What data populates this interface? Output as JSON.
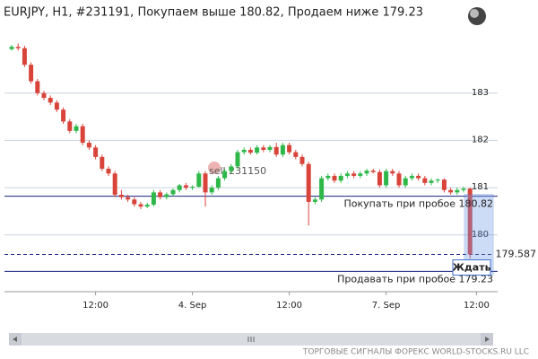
{
  "chart_data": {
    "type": "candlestick",
    "title": "EURJPY, H1, #231191, Покупаем выше 180.82, Продаем ниже 179.23",
    "categories": [
      null,
      null,
      null,
      null,
      null,
      null,
      null,
      null,
      null,
      null,
      null,
      null,
      null,
      "12:00",
      null,
      null,
      null,
      null,
      null,
      null,
      null,
      null,
      null,
      null,
      null,
      null,
      null,
      null,
      "4. Sep",
      null,
      null,
      null,
      null,
      null,
      null,
      null,
      null,
      null,
      null,
      null,
      null,
      null,
      null,
      "12:00",
      null,
      null,
      null,
      null,
      null,
      null,
      null,
      null,
      null,
      null,
      null,
      null,
      null,
      null,
      "7. Sep",
      null,
      null,
      null,
      null,
      null,
      null,
      null,
      null,
      null,
      null,
      null,
      null,
      null,
      "12:00"
    ],
    "ohlc": [
      [
        183.93,
        184.02,
        183.9,
        183.98
      ],
      [
        183.98,
        184.05,
        183.9,
        183.95
      ],
      [
        183.95,
        184.0,
        183.55,
        183.6
      ],
      [
        183.6,
        183.65,
        183.2,
        183.25
      ],
      [
        183.25,
        183.3,
        182.95,
        183.0
      ],
      [
        183.0,
        183.05,
        182.85,
        182.9
      ],
      [
        182.9,
        182.95,
        182.75,
        182.8
      ],
      [
        182.8,
        182.85,
        182.6,
        182.65
      ],
      [
        182.65,
        182.7,
        182.35,
        182.4
      ],
      [
        182.4,
        182.45,
        182.15,
        182.2
      ],
      [
        182.2,
        182.35,
        182.15,
        182.3
      ],
      [
        182.3,
        182.35,
        181.9,
        181.95
      ],
      [
        181.95,
        182.0,
        181.8,
        181.85
      ],
      [
        181.85,
        181.9,
        181.6,
        181.65
      ],
      [
        181.65,
        181.7,
        181.35,
        181.4
      ],
      [
        181.4,
        181.45,
        181.25,
        181.3
      ],
      [
        181.3,
        181.35,
        180.8,
        180.85
      ],
      [
        180.85,
        180.95,
        180.75,
        180.8
      ],
      [
        180.8,
        180.85,
        180.7,
        180.75
      ],
      [
        180.75,
        180.8,
        180.6,
        180.65
      ],
      [
        180.65,
        180.7,
        180.55,
        180.6
      ],
      [
        180.6,
        180.68,
        180.57,
        180.64
      ],
      [
        180.64,
        180.95,
        180.6,
        180.9
      ],
      [
        180.9,
        180.95,
        180.75,
        180.8
      ],
      [
        180.8,
        180.9,
        180.75,
        180.86
      ],
      [
        180.86,
        180.98,
        180.82,
        180.95
      ],
      [
        180.95,
        181.08,
        180.9,
        181.05
      ],
      [
        181.05,
        181.1,
        180.95,
        181.0
      ],
      [
        181.0,
        181.05,
        180.95,
        181.02
      ],
      [
        181.02,
        181.35,
        181.0,
        181.3
      ],
      [
        181.3,
        181.35,
        180.6,
        180.9
      ],
      [
        180.9,
        181.05,
        180.85,
        181.0
      ],
      [
        181.0,
        181.25,
        180.95,
        181.2
      ],
      [
        181.2,
        181.4,
        181.15,
        181.35
      ],
      [
        181.35,
        181.5,
        181.3,
        181.45
      ],
      [
        181.45,
        181.8,
        181.4,
        181.75
      ],
      [
        181.75,
        181.85,
        181.7,
        181.8
      ],
      [
        181.8,
        181.85,
        181.7,
        181.74
      ],
      [
        181.74,
        181.9,
        181.7,
        181.85
      ],
      [
        181.85,
        181.9,
        181.75,
        181.8
      ],
      [
        181.8,
        181.9,
        181.75,
        181.86
      ],
      [
        181.86,
        181.95,
        181.65,
        181.7
      ],
      [
        181.7,
        181.95,
        181.65,
        181.9
      ],
      [
        181.9,
        181.95,
        181.7,
        181.75
      ],
      [
        181.75,
        181.8,
        181.6,
        181.65
      ],
      [
        181.65,
        181.7,
        181.45,
        181.5
      ],
      [
        181.5,
        181.55,
        180.2,
        180.7
      ],
      [
        180.7,
        180.8,
        180.65,
        180.75
      ],
      [
        180.75,
        181.25,
        180.7,
        181.2
      ],
      [
        181.2,
        181.3,
        181.15,
        181.25
      ],
      [
        181.25,
        181.3,
        181.1,
        181.15
      ],
      [
        181.15,
        181.3,
        181.1,
        181.25
      ],
      [
        181.25,
        181.35,
        181.2,
        181.3
      ],
      [
        181.3,
        181.35,
        181.2,
        181.25
      ],
      [
        181.25,
        181.35,
        181.2,
        181.3
      ],
      [
        181.3,
        181.4,
        181.25,
        181.36
      ],
      [
        181.36,
        181.4,
        181.3,
        181.33
      ],
      [
        181.33,
        181.38,
        181.0,
        181.05
      ],
      [
        181.05,
        181.4,
        181.0,
        181.35
      ],
      [
        181.35,
        181.4,
        181.25,
        181.3
      ],
      [
        181.3,
        181.35,
        181.0,
        181.05
      ],
      [
        181.05,
        181.25,
        181.0,
        181.2
      ],
      [
        181.2,
        181.3,
        181.15,
        181.25
      ],
      [
        181.25,
        181.3,
        181.15,
        181.2
      ],
      [
        181.2,
        181.25,
        181.05,
        181.1
      ],
      [
        181.1,
        181.2,
        181.05,
        181.15
      ],
      [
        181.15,
        181.2,
        181.1,
        181.17
      ],
      [
        181.17,
        181.2,
        180.9,
        180.95
      ],
      [
        180.95,
        181.0,
        180.85,
        180.9
      ],
      [
        180.9,
        181.0,
        180.85,
        180.95
      ],
      [
        180.95,
        181.02,
        180.9,
        180.98
      ],
      [
        180.98,
        181.0,
        179.5,
        179.59
      ],
      null
    ],
    "up_color": "#2fb84a",
    "down_color": "#d9443a",
    "ylim": [
      178.8,
      184.4
    ],
    "yticks": [
      180,
      181,
      182,
      183
    ],
    "grid": true,
    "buy_level": 180.82,
    "buy_label": "Покупать при пробое 180.82",
    "sell_level": 179.23,
    "sell_label": "Продавать при пробое 179.23",
    "current_price": 179.587,
    "signal": "Ждать",
    "order_note": "sell 231150",
    "footer": "ТОРГОВЫЕ СИГНАЛЫ ФОРЕКС WORLD-STOCKS.RU LLC"
  }
}
